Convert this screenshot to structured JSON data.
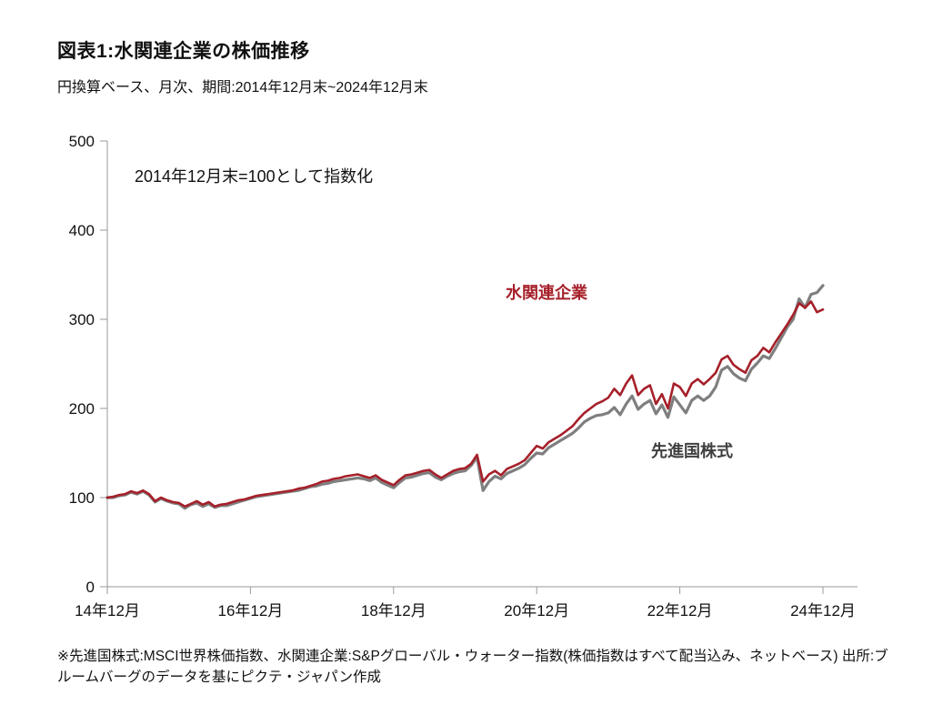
{
  "page": {
    "title": "図表1:水関連企業の株価推移",
    "subtitle": "円換算ベース、月次、期間:2014年12月末~2024年12月末",
    "footnote": "※先進国株式:MSCI世界株価指数、水関連企業:S&Pグローバル・ウォーター指数(株価指数はすべて配当込み、ネットベース) 出所:ブルームバーグのデータを基にピクテ・ジャパン作成"
  },
  "chart_data": {
    "type": "line",
    "title": "図表1:水関連企業の株価推移",
    "subtitle": "円換算ベース、月次、期間:2014年12月末~2024年12月末",
    "annotation": "2014年12月末=100として指数化",
    "x_unit": "months since 2014-12 (monthly, 2014-12 to 2024-12)",
    "x_tick_positions": [
      0,
      24,
      48,
      72,
      96,
      120
    ],
    "x_tick_labels": [
      "14年12月",
      "16年12月",
      "18年12月",
      "20年12月",
      "22年12月",
      "24年12月"
    ],
    "y_ticks": [
      0,
      100,
      200,
      300,
      400,
      500
    ],
    "ylim": [
      0,
      500
    ],
    "grid": false,
    "legend_position": "inline-labels",
    "series": [
      {
        "name": "水関連企業",
        "color": "#a6202a",
        "line_width": 2.6,
        "values": [
          100,
          101,
          103,
          104,
          107,
          105,
          108,
          104,
          96,
          100,
          97,
          95,
          94,
          90,
          93,
          96,
          92,
          95,
          90,
          92,
          93,
          95,
          97,
          98,
          100,
          102,
          103,
          104,
          105,
          106,
          107,
          108,
          110,
          111,
          113,
          115,
          118,
          119,
          121,
          122,
          124,
          125,
          126,
          124,
          122,
          125,
          120,
          117,
          114,
          120,
          125,
          126,
          128,
          130,
          131,
          126,
          122,
          126,
          130,
          132,
          133,
          138,
          148,
          118,
          126,
          130,
          125,
          132,
          135,
          138,
          142,
          150,
          158,
          155,
          162,
          166,
          170,
          175,
          180,
          188,
          195,
          200,
          205,
          208,
          212,
          222,
          215,
          228,
          237,
          215,
          222,
          226,
          205,
          216,
          200,
          228,
          224,
          214,
          228,
          233,
          227,
          233,
          240,
          255,
          259,
          249,
          244,
          240,
          254,
          259,
          268,
          263,
          274,
          284,
          294,
          305,
          318,
          313,
          320,
          308,
          311
        ]
      },
      {
        "name": "先進国株式",
        "color": "#7f7f7f",
        "line_width": 3.2,
        "values": [
          100,
          100,
          102,
          103,
          106,
          104,
          107,
          103,
          95,
          99,
          96,
          94,
          93,
          88,
          92,
          94,
          90,
          93,
          89,
          91,
          91,
          93,
          95,
          97,
          99,
          101,
          102,
          103,
          104,
          105,
          106,
          107,
          108,
          110,
          112,
          113,
          115,
          116,
          118,
          119,
          120,
          121,
          122,
          121,
          119,
          122,
          117,
          114,
          111,
          117,
          122,
          123,
          125,
          127,
          128,
          123,
          120,
          124,
          127,
          129,
          130,
          136,
          145,
          108,
          118,
          124,
          121,
          127,
          130,
          133,
          137,
          144,
          150,
          149,
          156,
          160,
          164,
          168,
          172,
          178,
          185,
          189,
          192,
          193,
          195,
          201,
          193,
          205,
          214,
          199,
          205,
          209,
          194,
          204,
          190,
          213,
          204,
          195,
          209,
          214,
          209,
          214,
          224,
          243,
          247,
          239,
          234,
          231,
          244,
          251,
          259,
          256,
          267,
          279,
          291,
          300,
          323,
          313,
          328,
          330,
          338
        ]
      }
    ]
  },
  "colors": {
    "water_series": "#a6202a",
    "world_series": "#7f7f7f",
    "axis": "#9a9a9a",
    "text": "#111111"
  }
}
